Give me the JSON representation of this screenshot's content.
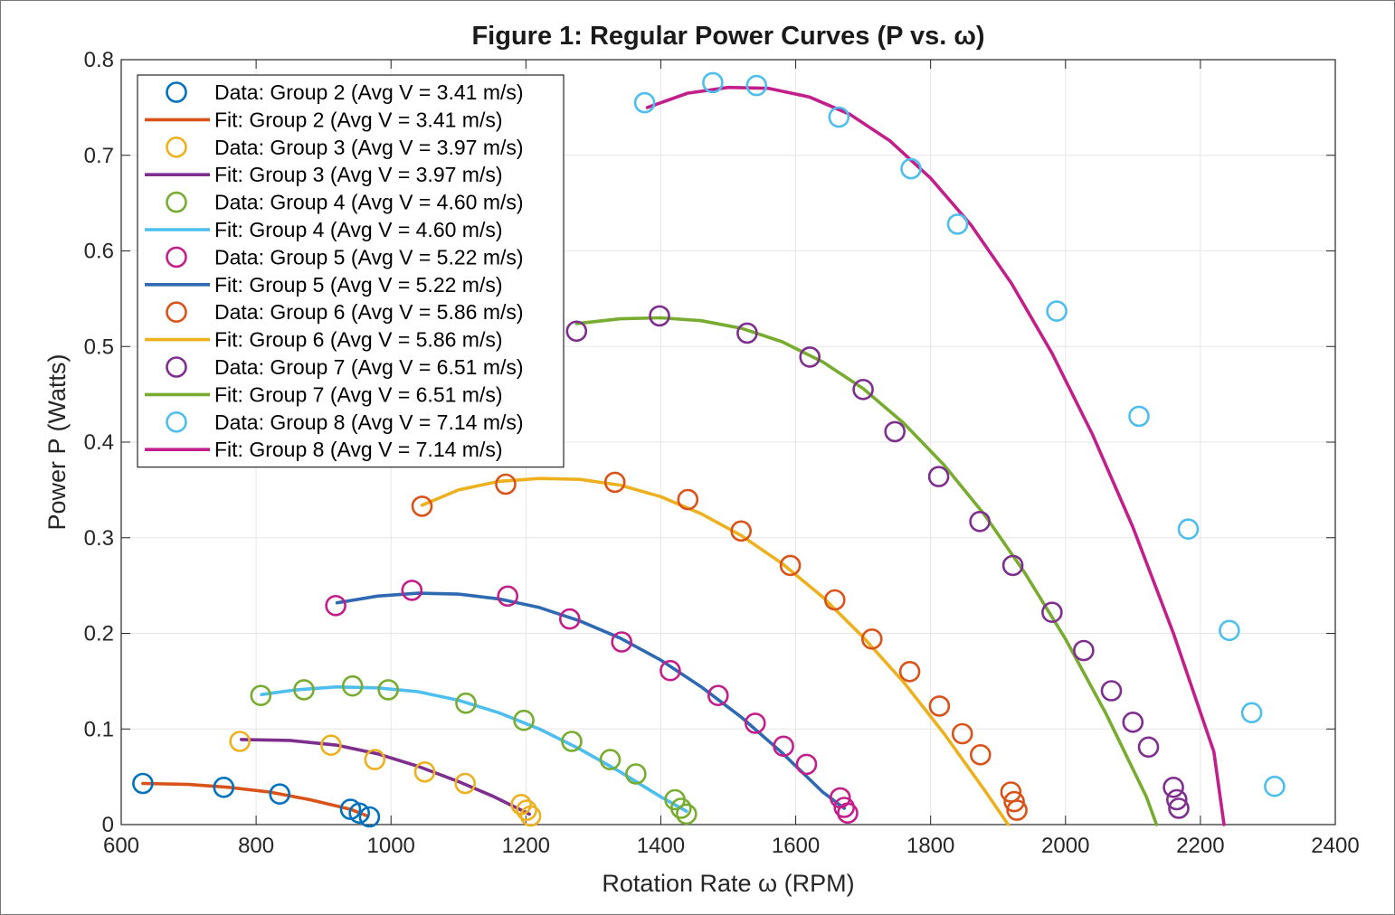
{
  "chart_data": {
    "type": "scatter",
    "title": "Figure 1: Regular Power Curves (P vs. ω)",
    "xlabel": "Rotation Rate ω (RPM)",
    "ylabel": "Power P (Watts)",
    "xlim": [
      600,
      2400
    ],
    "ylim": [
      0,
      0.8
    ],
    "xticks": [
      600,
      800,
      1000,
      1200,
      1400,
      1600,
      1800,
      2000,
      2200,
      2400
    ],
    "yticks": [
      0,
      0.1,
      0.2,
      0.3,
      0.4,
      0.5,
      0.6,
      0.7,
      0.8
    ],
    "ytick_labels": [
      "0",
      "0.1",
      "0.2",
      "0.3",
      "0.4",
      "0.5",
      "0.6",
      "0.7",
      "0.8"
    ],
    "grid": true,
    "legend_position": "top-left",
    "legend": [
      {
        "label": "Data: Group 2 (Avg V = 3.41 m/s)",
        "kind": "marker",
        "color": "#0072BD"
      },
      {
        "label": "Fit: Group 2 (Avg V = 3.41 m/s)",
        "kind": "line",
        "color": "#D95319"
      },
      {
        "label": "Data: Group 3 (Avg V = 3.97 m/s)",
        "kind": "marker",
        "color": "#EDB120"
      },
      {
        "label": "Fit: Group 3 (Avg V = 3.97 m/s)",
        "kind": "line",
        "color": "#7E2F8E"
      },
      {
        "label": "Data: Group 4 (Avg V = 4.60 m/s)",
        "kind": "marker",
        "color": "#77AC30"
      },
      {
        "label": "Fit: Group 4 (Avg V = 4.60 m/s)",
        "kind": "line",
        "color": "#4DBEEE"
      },
      {
        "label": "Data: Group 5 (Avg V = 5.22 m/s)",
        "kind": "marker",
        "color": "#C21F8A"
      },
      {
        "label": "Fit: Group 5 (Avg V = 5.22 m/s)",
        "kind": "line",
        "color": "#2E69B2"
      },
      {
        "label": "Data: Group 6 (Avg V = 5.86 m/s)",
        "kind": "marker",
        "color": "#D95319"
      },
      {
        "label": "Fit: Group 6 (Avg V = 5.86 m/s)",
        "kind": "line",
        "color": "#EDB120"
      },
      {
        "label": "Data: Group 7 (Avg V = 6.51 m/s)",
        "kind": "marker",
        "color": "#7E2F8E"
      },
      {
        "label": "Fit: Group 7 (Avg V = 6.51 m/s)",
        "kind": "line",
        "color": "#77AC30"
      },
      {
        "label": "Data: Group 8 (Avg V = 7.14 m/s)",
        "kind": "marker",
        "color": "#4DBEEE"
      },
      {
        "label": "Fit: Group 8 (Avg V = 7.14 m/s)",
        "kind": "line",
        "color": "#C21F8A"
      }
    ],
    "series": [
      {
        "name": "Group 2",
        "marker_color": "#0072BD",
        "fit_color": "#D95319",
        "points": [
          [
            632,
            0.043
          ],
          [
            752,
            0.039
          ],
          [
            835,
            0.032
          ],
          [
            940,
            0.016
          ],
          [
            953,
            0.012
          ],
          [
            968,
            0.008
          ]
        ],
        "fit": [
          [
            632,
            0.043
          ],
          [
            700,
            0.042
          ],
          [
            760,
            0.039
          ],
          [
            820,
            0.034
          ],
          [
            880,
            0.026
          ],
          [
            940,
            0.016
          ],
          [
            965,
            0.009
          ]
        ]
      },
      {
        "name": "Group 3",
        "marker_color": "#EDB120",
        "fit_color": "#7E2F8E",
        "points": [
          [
            776,
            0.087
          ],
          [
            911,
            0.083
          ],
          [
            976,
            0.068
          ],
          [
            1050,
            0.055
          ],
          [
            1110,
            0.043
          ],
          [
            1193,
            0.021
          ],
          [
            1201,
            0.015
          ],
          [
            1207,
            0.009
          ]
        ],
        "fit": [
          [
            778,
            0.089
          ],
          [
            850,
            0.088
          ],
          [
            920,
            0.083
          ],
          [
            980,
            0.074
          ],
          [
            1040,
            0.061
          ],
          [
            1100,
            0.045
          ],
          [
            1150,
            0.03
          ],
          [
            1205,
            0.011
          ]
        ]
      },
      {
        "name": "Group 4",
        "marker_color": "#77AC30",
        "fit_color": "#4DBEEE",
        "points": [
          [
            807,
            0.135
          ],
          [
            871,
            0.141
          ],
          [
            943,
            0.145
          ],
          [
            996,
            0.141
          ],
          [
            1111,
            0.127
          ],
          [
            1197,
            0.109
          ],
          [
            1268,
            0.087
          ],
          [
            1325,
            0.068
          ],
          [
            1363,
            0.053
          ],
          [
            1421,
            0.026
          ],
          [
            1430,
            0.017
          ],
          [
            1438,
            0.011
          ]
        ],
        "fit": [
          [
            808,
            0.136
          ],
          [
            860,
            0.141
          ],
          [
            920,
            0.144
          ],
          [
            980,
            0.143
          ],
          [
            1040,
            0.139
          ],
          [
            1100,
            0.13
          ],
          [
            1160,
            0.117
          ],
          [
            1220,
            0.1
          ],
          [
            1280,
            0.079
          ],
          [
            1340,
            0.055
          ],
          [
            1400,
            0.029
          ],
          [
            1438,
            0.014
          ]
        ]
      },
      {
        "name": "Group 5",
        "marker_color": "#C21F8A",
        "fit_color": "#2E69B2",
        "points": [
          [
            918,
            0.229
          ],
          [
            1031,
            0.245
          ],
          [
            1173,
            0.239
          ],
          [
            1265,
            0.215
          ],
          [
            1342,
            0.191
          ],
          [
            1414,
            0.161
          ],
          [
            1485,
            0.135
          ],
          [
            1540,
            0.106
          ],
          [
            1582,
            0.082
          ],
          [
            1616,
            0.063
          ],
          [
            1666,
            0.028
          ],
          [
            1672,
            0.018
          ],
          [
            1677,
            0.012
          ]
        ],
        "fit": [
          [
            920,
            0.232
          ],
          [
            980,
            0.239
          ],
          [
            1040,
            0.242
          ],
          [
            1100,
            0.241
          ],
          [
            1160,
            0.236
          ],
          [
            1220,
            0.227
          ],
          [
            1280,
            0.213
          ],
          [
            1340,
            0.195
          ],
          [
            1400,
            0.172
          ],
          [
            1460,
            0.144
          ],
          [
            1520,
            0.112
          ],
          [
            1580,
            0.075
          ],
          [
            1640,
            0.034
          ],
          [
            1672,
            0.017
          ]
        ]
      },
      {
        "name": "Group 6",
        "marker_color": "#D95319",
        "fit_color": "#EDB120",
        "points": [
          [
            1046,
            0.333
          ],
          [
            1170,
            0.356
          ],
          [
            1332,
            0.358
          ],
          [
            1440,
            0.34
          ],
          [
            1519,
            0.307
          ],
          [
            1592,
            0.271
          ],
          [
            1658,
            0.235
          ],
          [
            1713,
            0.194
          ],
          [
            1769,
            0.16
          ],
          [
            1813,
            0.124
          ],
          [
            1847,
            0.095
          ],
          [
            1874,
            0.073
          ],
          [
            1919,
            0.034
          ],
          [
            1924,
            0.024
          ],
          [
            1928,
            0.015
          ]
        ],
        "fit": [
          [
            1046,
            0.334
          ],
          [
            1100,
            0.35
          ],
          [
            1160,
            0.359
          ],
          [
            1220,
            0.362
          ],
          [
            1280,
            0.361
          ],
          [
            1340,
            0.355
          ],
          [
            1400,
            0.343
          ],
          [
            1460,
            0.325
          ],
          [
            1520,
            0.302
          ],
          [
            1580,
            0.273
          ],
          [
            1640,
            0.238
          ],
          [
            1700,
            0.196
          ],
          [
            1760,
            0.149
          ],
          [
            1820,
            0.095
          ],
          [
            1880,
            0.036
          ],
          [
            1915,
            0.0
          ]
        ]
      },
      {
        "name": "Group 7",
        "marker_color": "#7E2F8E",
        "fit_color": "#77AC30",
        "points": [
          [
            1275,
            0.516
          ],
          [
            1398,
            0.532
          ],
          [
            1528,
            0.514
          ],
          [
            1621,
            0.489
          ],
          [
            1700,
            0.455
          ],
          [
            1747,
            0.411
          ],
          [
            1812,
            0.364
          ],
          [
            1873,
            0.317
          ],
          [
            1922,
            0.271
          ],
          [
            1980,
            0.222
          ],
          [
            2027,
            0.182
          ],
          [
            2068,
            0.14
          ],
          [
            2100,
            0.107
          ],
          [
            2123,
            0.081
          ],
          [
            2160,
            0.039
          ],
          [
            2165,
            0.026
          ],
          [
            2168,
            0.017
          ]
        ],
        "fit": [
          [
            1275,
            0.524
          ],
          [
            1340,
            0.529
          ],
          [
            1400,
            0.53
          ],
          [
            1460,
            0.527
          ],
          [
            1520,
            0.519
          ],
          [
            1580,
            0.505
          ],
          [
            1640,
            0.484
          ],
          [
            1700,
            0.456
          ],
          [
            1760,
            0.42
          ],
          [
            1820,
            0.376
          ],
          [
            1880,
            0.324
          ],
          [
            1940,
            0.263
          ],
          [
            2000,
            0.194
          ],
          [
            2060,
            0.116
          ],
          [
            2120,
            0.029
          ],
          [
            2135,
            0.0
          ]
        ]
      },
      {
        "name": "Group 8",
        "marker_color": "#4DBEEE",
        "fit_color": "#C21F8A",
        "points": [
          [
            1376,
            0.755
          ],
          [
            1477,
            0.776
          ],
          [
            1542,
            0.773
          ],
          [
            1664,
            0.74
          ],
          [
            1771,
            0.686
          ],
          [
            1840,
            0.628
          ],
          [
            1987,
            0.537
          ],
          [
            2109,
            0.427
          ],
          [
            2182,
            0.309
          ],
          [
            2243,
            0.203
          ],
          [
            2276,
            0.117
          ],
          [
            2310,
            0.04
          ]
        ],
        "fit": [
          [
            1380,
            0.75
          ],
          [
            1440,
            0.765
          ],
          [
            1500,
            0.771
          ],
          [
            1560,
            0.77
          ],
          [
            1620,
            0.761
          ],
          [
            1680,
            0.743
          ],
          [
            1740,
            0.715
          ],
          [
            1800,
            0.676
          ],
          [
            1860,
            0.627
          ],
          [
            1920,
            0.566
          ],
          [
            1980,
            0.493
          ],
          [
            2040,
            0.408
          ],
          [
            2100,
            0.311
          ],
          [
            2160,
            0.2
          ],
          [
            2220,
            0.076
          ],
          [
            2235,
            0.0
          ]
        ]
      }
    ]
  }
}
